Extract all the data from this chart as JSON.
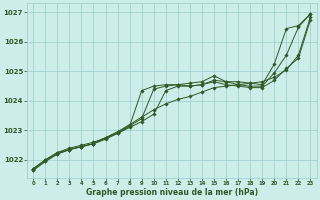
{
  "xlabel": "Graphe pression niveau de la mer (hPa)",
  "xlim": [
    -0.5,
    23.5
  ],
  "ylim": [
    1021.4,
    1027.3
  ],
  "yticks": [
    1022,
    1023,
    1024,
    1025,
    1026,
    1027
  ],
  "xticks": [
    0,
    1,
    2,
    3,
    4,
    5,
    6,
    7,
    8,
    9,
    10,
    11,
    12,
    13,
    14,
    15,
    16,
    17,
    18,
    19,
    20,
    21,
    22,
    23
  ],
  "background_color": "#cceee8",
  "grid_color": "#99cccc",
  "line_color": "#2d5a27",
  "lines": [
    [
      1021.7,
      1022.0,
      1022.25,
      1022.4,
      1022.5,
      1022.6,
      1022.75,
      1022.9,
      1023.15,
      1024.35,
      1024.5,
      1024.55,
      1024.55,
      1024.6,
      1024.65,
      1024.85,
      1024.65,
      1024.65,
      1024.6,
      1024.55,
      1025.25,
      1026.45,
      1026.55,
      1026.95
    ],
    [
      1021.7,
      1022.0,
      1022.25,
      1022.35,
      1022.45,
      1022.55,
      1022.75,
      1022.95,
      1023.15,
      1023.4,
      1024.4,
      1024.5,
      1024.55,
      1024.5,
      1024.55,
      1024.7,
      1024.65,
      1024.55,
      1024.5,
      1024.5,
      1024.95,
      1025.55,
      1026.5,
      1026.95
    ],
    [
      1021.65,
      1021.95,
      1022.2,
      1022.35,
      1022.45,
      1022.55,
      1022.7,
      1022.9,
      1023.1,
      1023.3,
      1023.55,
      1024.35,
      1024.5,
      1024.5,
      1024.55,
      1024.65,
      1024.55,
      1024.5,
      1024.45,
      1024.45,
      1024.7,
      1025.1,
      1025.45,
      1026.75
    ],
    [
      1021.65,
      1021.95,
      1022.2,
      1022.35,
      1022.45,
      1022.55,
      1022.75,
      1022.95,
      1023.2,
      1023.45,
      1023.7,
      1023.9,
      1024.05,
      1024.15,
      1024.3,
      1024.45,
      1024.5,
      1024.55,
      1024.6,
      1024.65,
      1024.8,
      1025.05,
      1025.55,
      1026.85
    ]
  ]
}
